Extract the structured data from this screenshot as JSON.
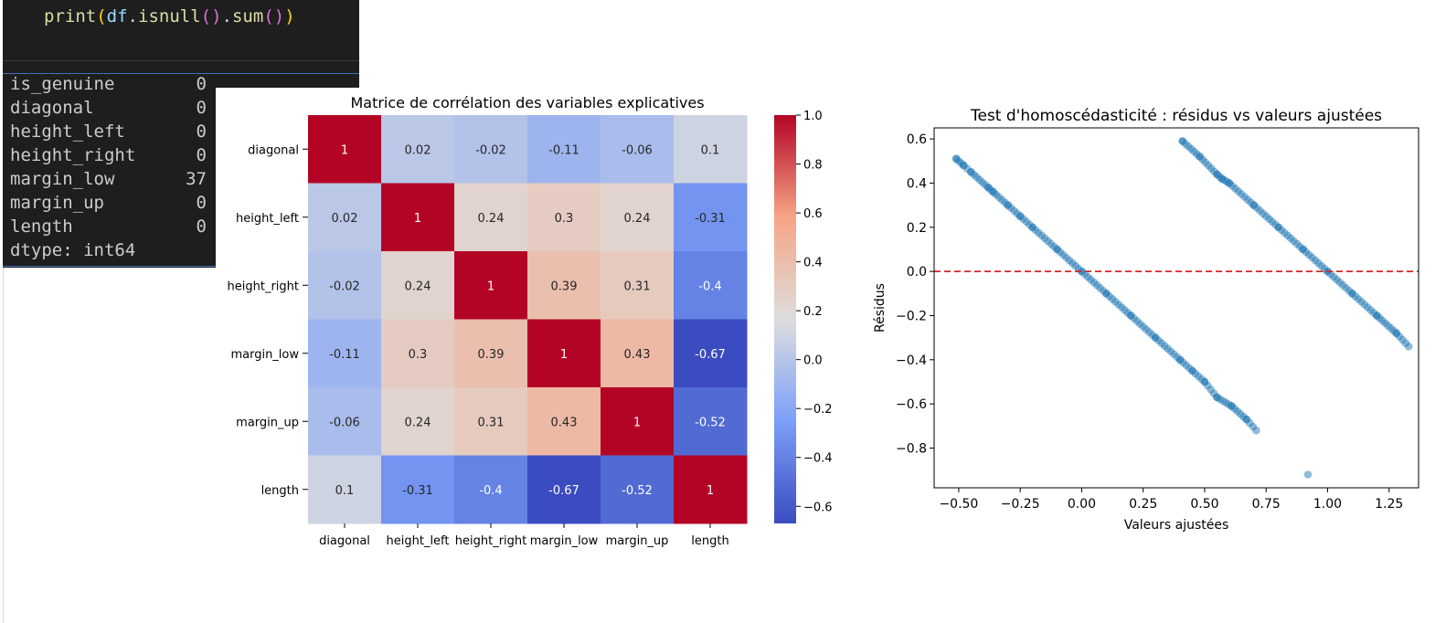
{
  "code": {
    "fn": "print",
    "var": "df",
    "method1": "isnull",
    "method2": "sum"
  },
  "output": {
    "rows": [
      {
        "name": "is_genuine",
        "value": "0"
      },
      {
        "name": "diagonal",
        "value": "0"
      },
      {
        "name": "height_left",
        "value": "0"
      },
      {
        "name": "height_right",
        "value": "0"
      },
      {
        "name": "margin_low",
        "value": "37"
      },
      {
        "name": "margin_up",
        "value": "0"
      },
      {
        "name": "length",
        "value": "0"
      }
    ],
    "dtype": "dtype: int64"
  },
  "chart_data": [
    {
      "type": "heatmap",
      "title": "Matrice de corrélation des variables explicatives",
      "colormap": "coolwarm",
      "vmin": -0.67,
      "vmax": 1.0,
      "rows": [
        "diagonal",
        "height_left",
        "height_right",
        "margin_low",
        "margin_up",
        "length"
      ],
      "columns": [
        "diagonal",
        "height_left",
        "height_right",
        "margin_low",
        "margin_up",
        "length"
      ],
      "values": [
        [
          1,
          0.02,
          -0.02,
          -0.11,
          -0.06,
          0.1
        ],
        [
          0.02,
          1,
          0.24,
          0.3,
          0.24,
          -0.31
        ],
        [
          -0.02,
          0.24,
          1,
          0.39,
          0.31,
          -0.4
        ],
        [
          -0.11,
          0.3,
          0.39,
          1,
          0.43,
          -0.67
        ],
        [
          -0.06,
          0.24,
          0.31,
          0.43,
          1,
          -0.52
        ],
        [
          0.1,
          -0.31,
          -0.4,
          -0.67,
          -0.52,
          1
        ]
      ],
      "colorbar_ticks": [
        "1.0",
        "0.8",
        "0.6",
        "0.4",
        "0.2",
        "0.0",
        "−0.2",
        "−0.4",
        "−0.6"
      ]
    },
    {
      "type": "scatter",
      "title": "Test d'homoscédasticité : résidus vs valeurs ajustées",
      "xlabel": "Valeurs ajustées",
      "ylabel": "Résidus",
      "xlim": [
        -0.6,
        1.37
      ],
      "ylim": [
        -0.98,
        0.65
      ],
      "xticks": [
        "−0.50",
        "−0.25",
        "0.00",
        "0.25",
        "0.50",
        "0.75",
        "1.00",
        "1.25"
      ],
      "yticks": [
        "0.6",
        "0.4",
        "0.2",
        "0.0",
        "−0.2",
        "−0.4",
        "−0.6",
        "−0.8"
      ],
      "hline_y": 0.0,
      "hline_color": "#d62728",
      "point_color": "#1f77b4",
      "series": [
        {
          "x": [
            -0.51,
            -0.48,
            -0.45,
            -0.38,
            -0.36,
            -0.3,
            -0.25,
            -0.2,
            -0.1,
            0.0,
            0.1,
            0.2,
            0.3,
            0.4,
            0.45,
            0.5,
            0.55,
            0.61,
            0.67,
            0.71
          ],
          "y": [
            0.51,
            0.48,
            0.45,
            0.38,
            0.36,
            0.3,
            0.25,
            0.2,
            0.1,
            0.0,
            -0.1,
            -0.2,
            -0.3,
            -0.4,
            -0.45,
            -0.5,
            -0.57,
            -0.61,
            -0.67,
            -0.72
          ]
        },
        {
          "x": [
            0.41,
            0.48,
            0.55,
            0.57,
            0.6,
            0.7,
            0.8,
            0.9,
            1.0,
            1.1,
            1.2,
            1.28,
            1.33
          ],
          "y": [
            0.59,
            0.52,
            0.44,
            0.42,
            0.4,
            0.3,
            0.2,
            0.1,
            0.0,
            -0.1,
            -0.2,
            -0.28,
            -0.34
          ]
        },
        {
          "x": [
            0.92
          ],
          "y": [
            -0.92
          ]
        }
      ]
    }
  ]
}
